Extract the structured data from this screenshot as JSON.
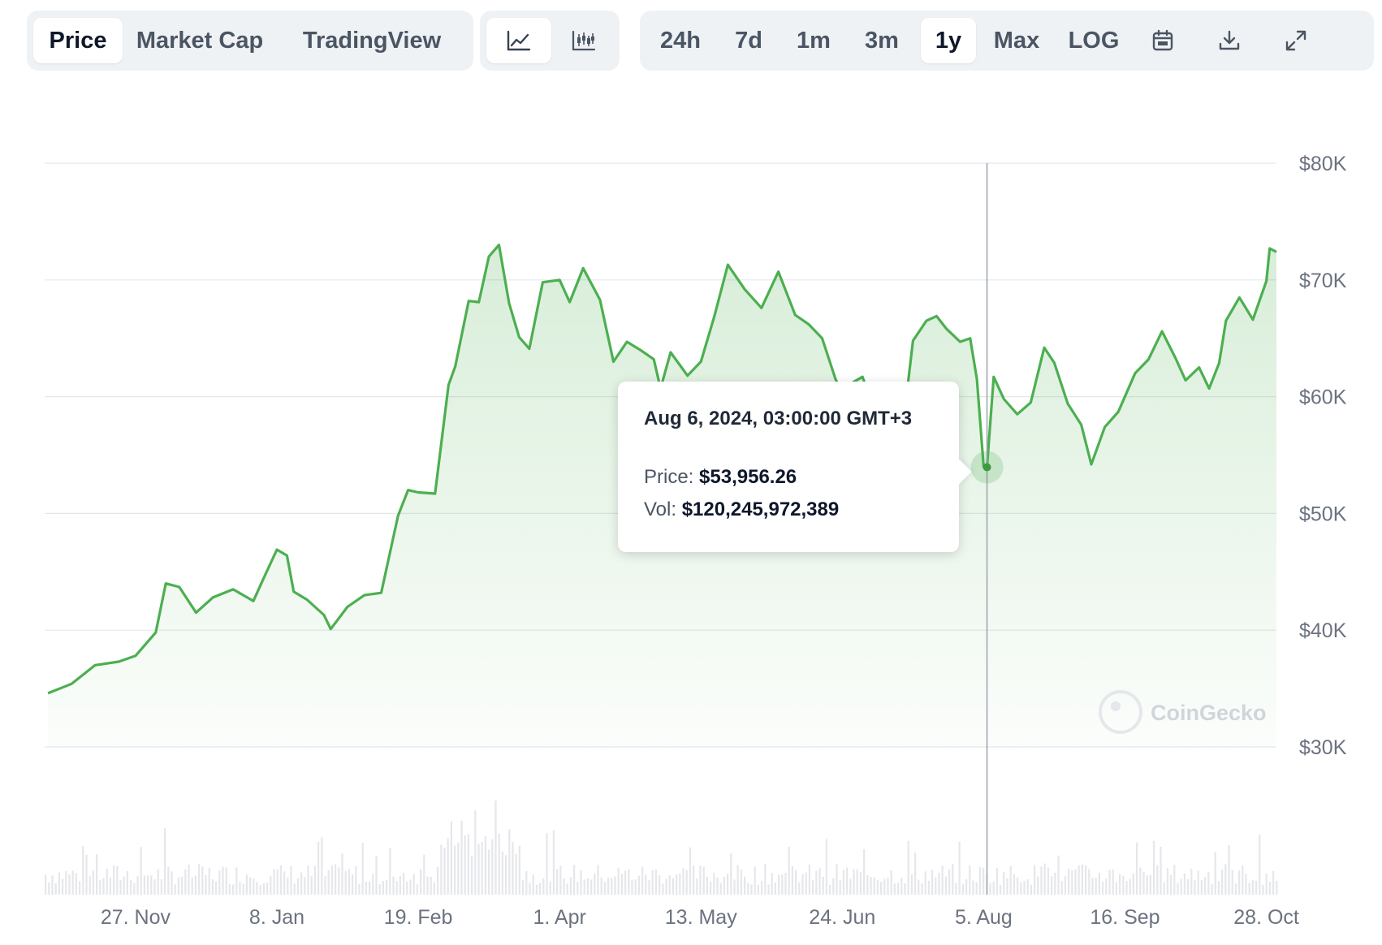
{
  "toolbar": {
    "tabs": [
      {
        "label": "Price",
        "active": true
      },
      {
        "label": "Market Cap",
        "active": false
      },
      {
        "label": "TradingView",
        "active": false
      }
    ],
    "chart_types": [
      {
        "icon": "line-chart-icon",
        "active": true
      },
      {
        "icon": "candlestick-chart-icon",
        "active": false
      }
    ],
    "ranges": [
      {
        "label": "24h",
        "active": false
      },
      {
        "label": "7d",
        "active": false
      },
      {
        "label": "1m",
        "active": false
      },
      {
        "label": "3m",
        "active": false
      },
      {
        "label": "1y",
        "active": true
      },
      {
        "label": "Max",
        "active": false
      },
      {
        "label": "LOG",
        "active": false
      }
    ],
    "actions": [
      "calendar-icon",
      "download-icon",
      "fullscreen-icon"
    ]
  },
  "tooltip": {
    "date": "Aug 6, 2024, 03:00:00 GMT+3",
    "price_label": "Price:",
    "price_value": "$53,956.26",
    "vol_label": "Vol:",
    "vol_value": "$120,245,972,389"
  },
  "watermark": "CoinGecko",
  "colors": {
    "line": "#4caf50",
    "fill": "#4caf50",
    "volume": "#e5e7eb",
    "grid": "#e5e7eb"
  },
  "chart_data": {
    "type": "area",
    "series": [
      {
        "x": [
          "2023-11-01",
          "2023-11-08",
          "2023-11-15",
          "2023-11-22",
          "2023-11-27",
          "2023-12-03",
          "2023-12-06",
          "2023-12-10",
          "2023-12-15",
          "2023-12-20",
          "2023-12-26",
          "2024-01-01",
          "2024-01-04",
          "2024-01-08",
          "2024-01-11",
          "2024-01-13",
          "2024-01-17",
          "2024-01-22",
          "2024-01-24",
          "2024-01-29",
          "2024-02-03",
          "2024-02-08",
          "2024-02-13",
          "2024-02-16",
          "2024-02-19",
          "2024-02-24",
          "2024-02-28",
          "2024-03-01",
          "2024-03-05",
          "2024-03-08",
          "2024-03-11",
          "2024-03-14",
          "2024-03-17",
          "2024-03-20",
          "2024-03-23",
          "2024-03-27",
          "2024-04-01",
          "2024-04-04",
          "2024-04-08",
          "2024-04-13",
          "2024-04-17",
          "2024-04-21",
          "2024-04-25",
          "2024-04-29",
          "2024-05-01",
          "2024-05-04",
          "2024-05-09",
          "2024-05-13",
          "2024-05-17",
          "2024-05-21",
          "2024-05-26",
          "2024-05-31",
          "2024-06-05",
          "2024-06-10",
          "2024-06-14",
          "2024-06-18",
          "2024-06-22",
          "2024-06-24",
          "2024-06-27",
          "2024-06-30",
          "2024-07-05",
          "2024-07-08",
          "2024-07-12",
          "2024-07-15",
          "2024-07-19",
          "2024-07-22",
          "2024-07-25",
          "2024-07-29",
          "2024-08-01",
          "2024-08-03",
          "2024-08-05",
          "2024-08-06",
          "2024-08-08",
          "2024-08-11",
          "2024-08-15",
          "2024-08-19",
          "2024-08-23",
          "2024-08-26",
          "2024-08-30",
          "2024-09-03",
          "2024-09-06",
          "2024-09-10",
          "2024-09-14",
          "2024-09-19",
          "2024-09-23",
          "2024-09-27",
          "2024-10-01",
          "2024-10-04",
          "2024-10-08",
          "2024-10-11",
          "2024-10-14",
          "2024-10-16",
          "2024-10-20",
          "2024-10-24",
          "2024-10-28",
          "2024-10-29",
          "2024-10-31"
        ],
        "y": [
          34600,
          35400,
          37000,
          37300,
          37800,
          39800,
          44000,
          43700,
          41500,
          42800,
          43500,
          42500,
          44400,
          46900,
          46400,
          43300,
          42600,
          41300,
          40100,
          42000,
          43000,
          43200,
          49800,
          52000,
          51800,
          51700,
          61000,
          62600,
          68200,
          68100,
          72000,
          73000,
          68000,
          65100,
          64100,
          69800,
          70000,
          68100,
          71000,
          68300,
          63000,
          64700,
          64000,
          63200,
          60700,
          63800,
          61800,
          63000,
          66900,
          71300,
          69200,
          67600,
          70700,
          67000,
          66200,
          65000,
          61500,
          60300,
          61200,
          61700,
          57700,
          56000,
          57400,
          64800,
          66500,
          66900,
          65800,
          64700,
          65000,
          61500,
          54000,
          53956,
          61700,
          59800,
          58500,
          59500,
          64200,
          62900,
          59400,
          57600,
          54200,
          57400,
          58700,
          62000,
          63200,
          65600,
          63300,
          61400,
          62500,
          60700,
          62900,
          66500,
          68500,
          66600,
          69900,
          72700,
          72400
        ]
      }
    ],
    "y_ticks": [
      "$30K",
      "$40K",
      "$50K",
      "$60K",
      "$70K",
      "$80K"
    ],
    "x_ticks": [
      "27. Nov",
      "8. Jan",
      "19. Feb",
      "1. Apr",
      "13. May",
      "24. Jun",
      "5. Aug",
      "16. Sep",
      "28. Oct"
    ],
    "ylim": [
      30000,
      80000
    ],
    "xlim": [
      "2023-10-31",
      "2024-10-31"
    ],
    "highlight": {
      "x": "2024-08-06",
      "y": 53956.26,
      "volume": 120245972389
    },
    "grid": true,
    "volume_bars": true
  }
}
